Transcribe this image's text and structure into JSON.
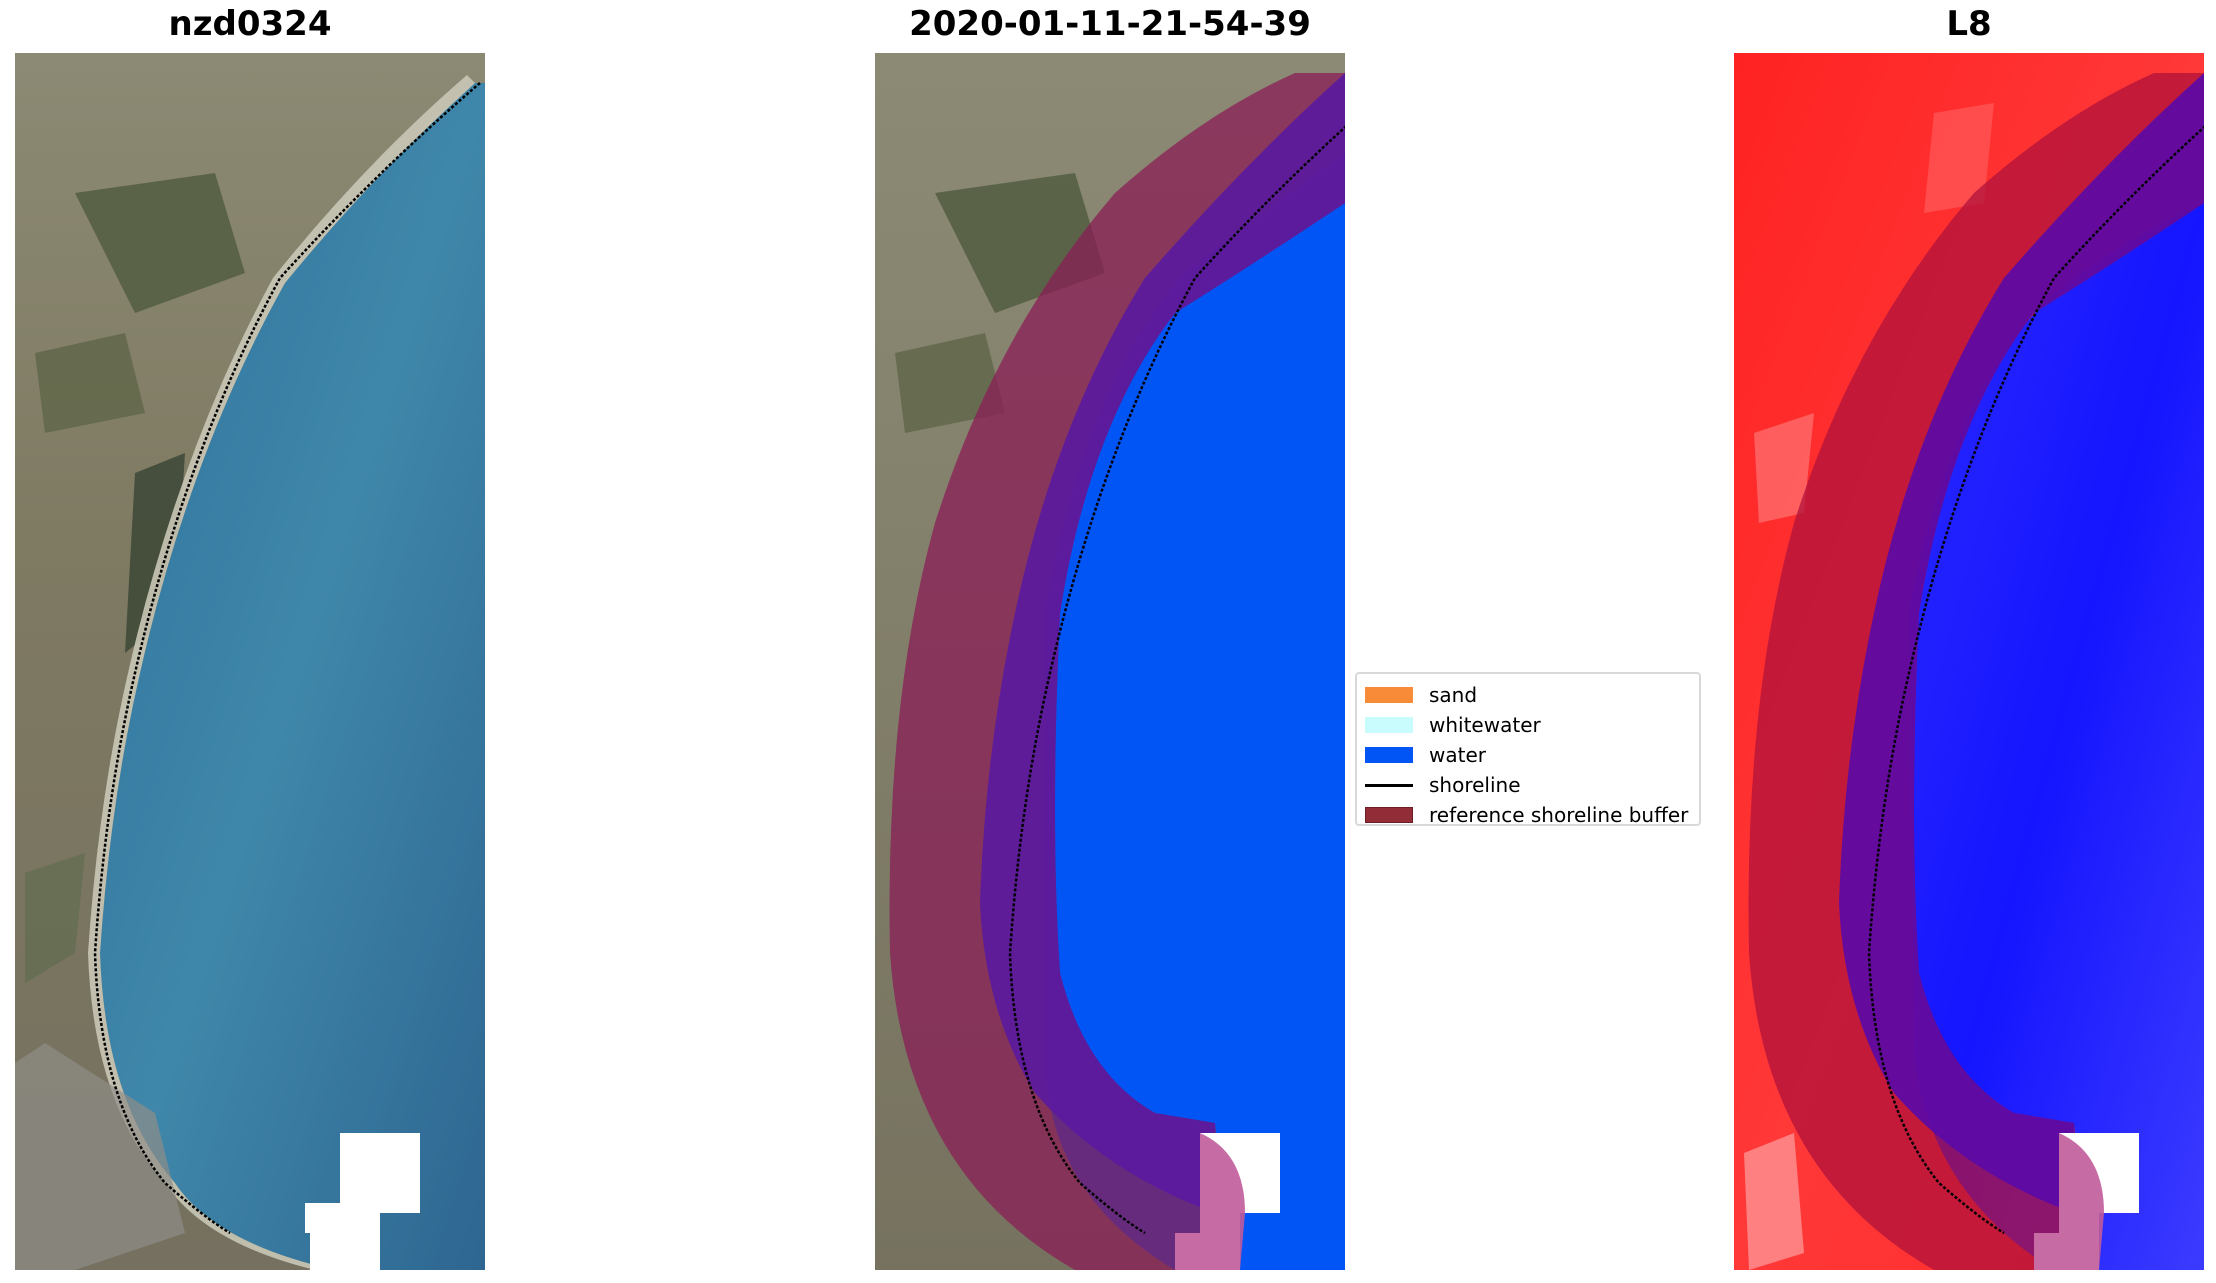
{
  "panels": {
    "left_title": "nzd0324",
    "middle_title": "2020-01-11-21-54-39",
    "right_title": "L8"
  },
  "legend": {
    "placement": "center",
    "items": [
      {
        "label": "sand",
        "color": "#f88b37",
        "kind": "patch"
      },
      {
        "label": "whitewater",
        "color": "#c9fcfc",
        "kind": "patch"
      },
      {
        "label": "water",
        "color": "#0155f5",
        "kind": "patch"
      },
      {
        "label": "shoreline",
        "color": "#000000",
        "kind": "line"
      },
      {
        "label": "reference shoreline buffer",
        "color": "#922c36",
        "kind": "patch"
      }
    ]
  },
  "colors": {
    "land": "#8a8470",
    "sea": "#2f6f9a",
    "water_class": "#0155f5",
    "buffer": "#8a1e56",
    "index_land": "#ff2a2a",
    "index_water": "#1a1aff"
  }
}
